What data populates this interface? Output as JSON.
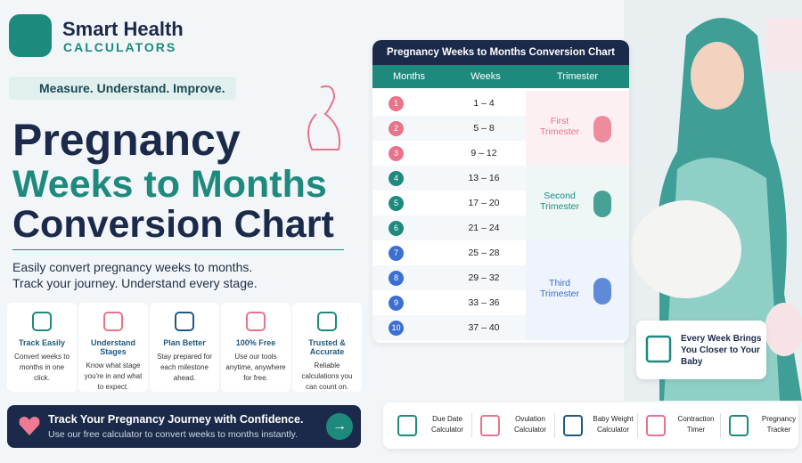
{
  "brand": {
    "name": "Smart Health",
    "tagline": "CALCULATORS"
  },
  "badge": "Measure. Understand. Improve.",
  "title": {
    "line1": "Pregnancy",
    "line2": "Weeks to Months",
    "line3": "Conversion Chart"
  },
  "description": [
    "Easily convert pregnancy weeks to months.",
    "Track your journey. Understand every stage."
  ],
  "features": [
    {
      "title": "Track Easily",
      "text": "Convert weeks to months in one click."
    },
    {
      "title": "Understand Stages",
      "text": "Know what stage you're in and what to expect."
    },
    {
      "title": "Plan Better",
      "text": "Stay prepared for each milestone ahead."
    },
    {
      "title": "100% Free",
      "text": "Use our tools anytime, anywhere for free."
    },
    {
      "title": "Trusted & Accurate",
      "text": "Reliable calculations you can count on."
    }
  ],
  "cta": {
    "title": "Track Your Pregnancy Journey with Confidence.",
    "text": "Use our free calculator to convert weeks to months instantly."
  },
  "table": {
    "title": "Pregnancy Weeks to Months Conversion Chart",
    "headers": [
      "Months",
      "Weeks",
      "Trimester"
    ],
    "rows": [
      [
        1,
        "1 – 4"
      ],
      [
        2,
        "5 – 8"
      ],
      [
        3,
        "9 – 12"
      ],
      [
        4,
        "13 – 16"
      ],
      [
        5,
        "17 – 20"
      ],
      [
        6,
        "21 – 24"
      ],
      [
        7,
        "25 – 28"
      ],
      [
        8,
        "29 – 32"
      ],
      [
        9,
        "33 – 36"
      ],
      [
        10,
        "37 – 40"
      ]
    ],
    "trimesters": [
      "First Trimester",
      "Second Trimester",
      "Third Trimester"
    ]
  },
  "promo": "Every Week Brings You Closer to Your Baby",
  "tools": [
    "Due Date Calculator",
    "Ovulation Calculator",
    "Baby Weight Calculator",
    "Contraction Timer",
    "Pregnancy Tracker"
  ]
}
